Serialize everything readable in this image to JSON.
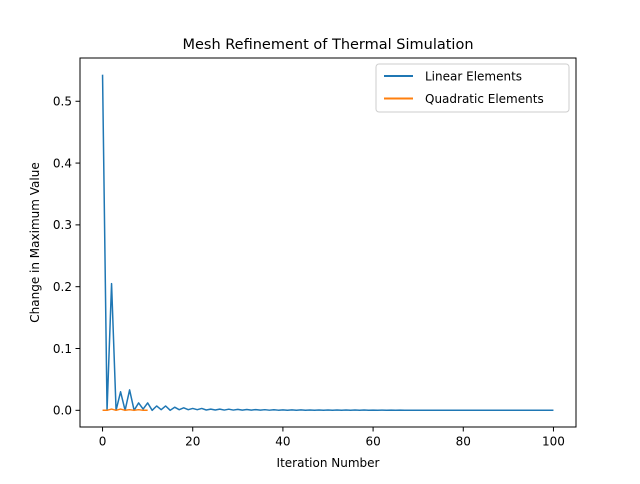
{
  "chart_data": {
    "type": "line",
    "title": "Mesh Refinement of Thermal Simulation",
    "xlabel": "Iteration Number",
    "ylabel": "Change in Maximum Value",
    "xlim": [
      -5,
      105
    ],
    "ylim": [
      -0.027,
      0.57
    ],
    "xticks": [
      0,
      20,
      40,
      60,
      80,
      100
    ],
    "xtick_labels": [
      "0",
      "20",
      "40",
      "60",
      "80",
      "100"
    ],
    "yticks": [
      0.0,
      0.1,
      0.2,
      0.3,
      0.4,
      0.5
    ],
    "ytick_labels": [
      "0.0",
      "0.1",
      "0.2",
      "0.3",
      "0.4",
      "0.5"
    ],
    "grid": false,
    "legend_position": "upper right",
    "series": [
      {
        "name": "Linear Elements",
        "color": "#1f77b4",
        "x": [
          0,
          1,
          2,
          3,
          4,
          5,
          6,
          7,
          8,
          9,
          10,
          11,
          12,
          13,
          14,
          15,
          16,
          17,
          18,
          19,
          20,
          21,
          22,
          23,
          24,
          25,
          26,
          27,
          28,
          29,
          30,
          31,
          32,
          33,
          34,
          35,
          36,
          37,
          38,
          39,
          40,
          41,
          42,
          43,
          44,
          45,
          46,
          47,
          48,
          49,
          50,
          51,
          52,
          53,
          54,
          55,
          56,
          57,
          58,
          59,
          60,
          61,
          62,
          63,
          64,
          65,
          66,
          67,
          68,
          69,
          70,
          71,
          72,
          73,
          74,
          75,
          76,
          77,
          78,
          79,
          80,
          81,
          82,
          83,
          84,
          85,
          86,
          87,
          88,
          89,
          90,
          91,
          92,
          93,
          94,
          95,
          96,
          97,
          98,
          99,
          100
        ],
        "y": [
          0.543,
          0.0,
          0.205,
          0.0,
          0.03,
          0.0,
          0.033,
          0.0,
          0.012,
          0.002,
          0.012,
          0.0,
          0.007,
          0.001,
          0.007,
          0.0,
          0.005,
          0.001,
          0.004,
          0.001,
          0.003,
          0.001,
          0.003,
          0.0005,
          0.002,
          0.0005,
          0.002,
          0.0004,
          0.0018,
          0.0004,
          0.0015,
          0.0003,
          0.0013,
          0.0003,
          0.0012,
          0.0003,
          0.001,
          0.0002,
          0.0009,
          0.0002,
          0.0008,
          0.0002,
          0.0008,
          0.0002,
          0.0007,
          0.0002,
          0.0006,
          0.0001,
          0.0006,
          0.0001,
          0.0005,
          0.0001,
          0.0005,
          0.0001,
          0.0004,
          0.0001,
          0.0004,
          0.0001,
          0.0004,
          0.0001,
          0.0003,
          0.0001,
          0.0003,
          0.0001,
          0.0003,
          0.0001,
          0.0003,
          0.0001,
          0.0002,
          0.0001,
          0.0002,
          0.0,
          0.0002,
          0.0,
          0.0002,
          0.0,
          0.0002,
          0.0,
          0.0002,
          0.0,
          0.0001,
          0.0,
          0.0001,
          0.0,
          0.0001,
          0.0,
          0.0001,
          0.0,
          0.0001,
          0.0,
          0.0001,
          0.0,
          0.0001,
          0.0,
          0.0001,
          0.0,
          0.0001,
          0.0,
          0.0001,
          0.0,
          0.0001
        ]
      },
      {
        "name": "Quadratic Elements",
        "color": "#ff7f0e",
        "x": [
          0,
          1,
          2,
          3,
          4,
          5,
          6,
          7,
          8,
          9,
          10
        ],
        "y": [
          0.0,
          0.0,
          0.002,
          0.0,
          0.002,
          0.0,
          0.001,
          0.0,
          0.001,
          0.0,
          0.0
        ]
      }
    ]
  }
}
